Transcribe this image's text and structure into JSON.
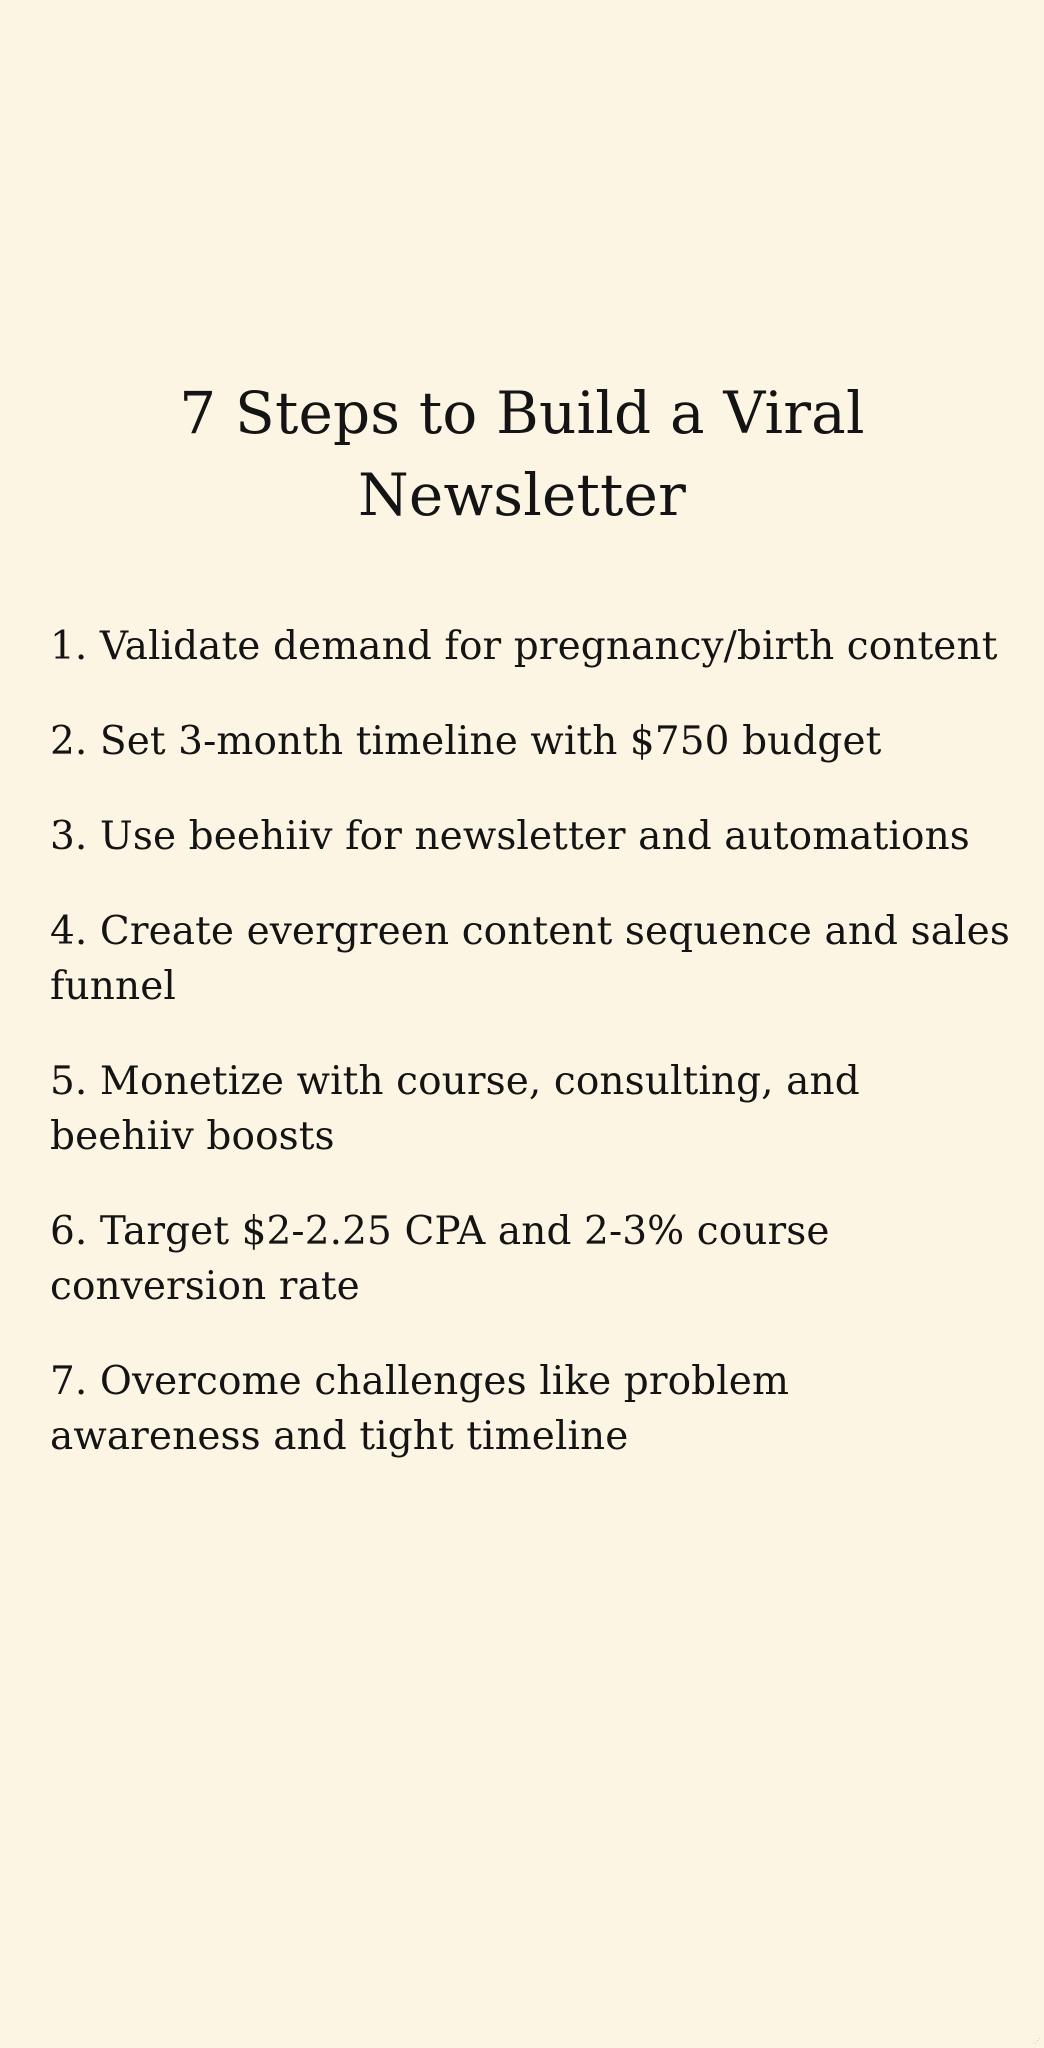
{
  "document": {
    "title_line1": "7 Steps to Build a Viral",
    "title_line2": "Newsletter",
    "steps": [
      "1. Validate demand for pregnancy/birth content",
      "2. Set 3-month timeline with $750 budget",
      "3. Use beehiiv for newsletter and automations",
      "4. Create evergreen content sequence and sales funnel",
      "5. Monetize with course, consulting, and beehiiv boosts",
      "6. Target $2-2.25 CPA and 2-3% course conversion rate",
      "7. Overcome challenges like problem awareness and tight timeline"
    ]
  },
  "colors": {
    "background": "#fcf5e3",
    "text": "#141414"
  }
}
